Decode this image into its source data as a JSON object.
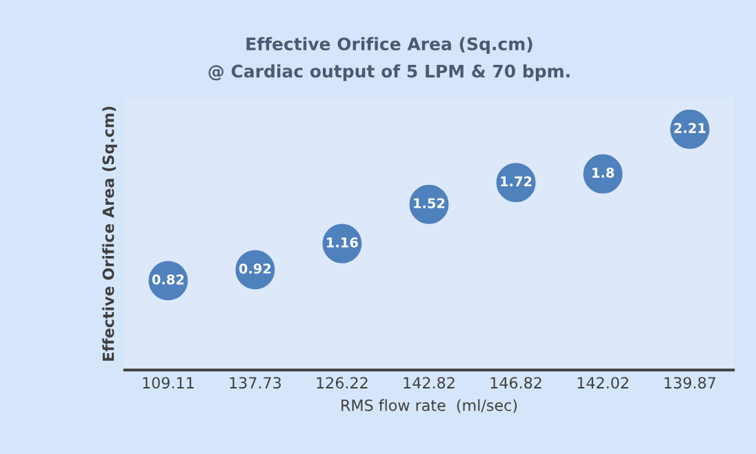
{
  "chart_data": {
    "type": "scatter",
    "title": "Effective Orifice Area (Sq.cm)",
    "subtitle": "@ Cardiac output of 5 LPM & 70 bpm.",
    "xlabel": "RMS flow rate  (ml/sec)",
    "ylabel": "Effective Orifice Area (Sq.cm)",
    "categories": [
      "109.11",
      "137.73",
      "126.22",
      "142.82",
      "146.82",
      "142.02",
      "139.87"
    ],
    "series": [
      {
        "color": "#4f81bd",
        "values": [
          0.82,
          0.92,
          1.16,
          1.52,
          1.72,
          1.8,
          2.21
        ]
      }
    ],
    "ylim": [
      0,
      2.5
    ],
    "tick_labels": "x",
    "data_labels": true,
    "marker": "circle",
    "grid": false,
    "legend": false
  }
}
